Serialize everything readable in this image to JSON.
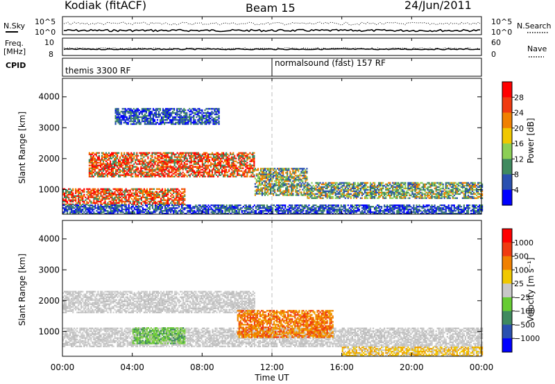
{
  "header": {
    "station": "Kodiak (fitACF)",
    "beam": "Beam 15",
    "date": "24/Jun/2011"
  },
  "panels": {
    "nsky_label": "N.Sky",
    "nsearch_label": "N.Search",
    "nsky_ticks": [
      "10^5",
      "10^0"
    ],
    "nsky_right_ticks": [
      "10^5",
      "10^0"
    ],
    "freq_label_line1": "Freq.",
    "freq_label_line2": "[MHz]",
    "freq_ticks": [
      "10",
      "8"
    ],
    "nave_label": "Nave",
    "nave_ticks": [
      "60",
      "0"
    ],
    "cpid_label": "CPID",
    "cpid_segments": [
      {
        "label": "themis 3300 RF",
        "start_hour": 0
      },
      {
        "label": "normalsound (fast) 157 RF",
        "start_hour": 12
      }
    ]
  },
  "chart_data": [
    {
      "type": "heatmap",
      "name": "power",
      "ylabel": "Slant Range [km]",
      "xlabel": "Time UT",
      "xlim_hours": [
        0,
        24
      ],
      "ylim": [
        200,
        4600
      ],
      "yticks": [
        "4000",
        "3000",
        "2000",
        "1000"
      ],
      "xticks": [
        "00:00",
        "04:00",
        "08:00",
        "12:00",
        "16:00",
        "20:00",
        "00:00"
      ],
      "colorbar_label": "Power [dB]",
      "colorbar_ticks": [
        "28",
        "24",
        "20",
        "16",
        "12",
        "8",
        "4"
      ],
      "colorbar_colors": [
        "#0000ff",
        "#2a50b0",
        "#3f8a5f",
        "#8ccf55",
        "#f0c800",
        "#f08000",
        "#f03a10",
        "#ff0000"
      ],
      "bands": [
        {
          "t0": 0.0,
          "t1": 7.0,
          "r0": 500,
          "r1": 1000,
          "level": "high"
        },
        {
          "t0": 1.5,
          "t1": 11.0,
          "r0": 1400,
          "r1": 2200,
          "level": "high"
        },
        {
          "t0": 11.0,
          "t1": 14.0,
          "r0": 800,
          "r1": 1700,
          "level": "mid"
        },
        {
          "t0": 14.0,
          "t1": 24.0,
          "r0": 700,
          "r1": 1200,
          "level": "mid"
        },
        {
          "t0": 3.0,
          "t1": 9.0,
          "r0": 3100,
          "r1": 3600,
          "level": "low"
        },
        {
          "t0": 0.0,
          "t1": 24.0,
          "r0": 200,
          "r1": 500,
          "level": "low"
        }
      ]
    },
    {
      "type": "heatmap",
      "name": "velocity",
      "ylabel": "Slant Range [km]",
      "xlabel": "Time UT",
      "xlim_hours": [
        0,
        24
      ],
      "ylim": [
        200,
        4600
      ],
      "yticks": [
        "4000",
        "3000",
        "2000",
        "1000"
      ],
      "xticks": [
        "00:00",
        "04:00",
        "08:00",
        "12:00",
        "16:00",
        "20:00",
        "00:00"
      ],
      "colorbar_label": "Velocity [m s⁻¹]",
      "colorbar_ticks": [
        "1000",
        "500",
        "100",
        "25",
        "−25",
        "−100",
        "−500",
        "−1000"
      ],
      "colorbar_colors": [
        "#0000ff",
        "#2a50b0",
        "#3f8a5f",
        "#66cc33",
        "#c8c8c8",
        "#f0c800",
        "#f08000",
        "#f03a10",
        "#ff0000"
      ],
      "bands": [
        {
          "t0": 0.0,
          "t1": 24.0,
          "r0": 500,
          "r1": 1100,
          "level": "gray"
        },
        {
          "t0": 0.0,
          "t1": 11.0,
          "r0": 1600,
          "r1": 2300,
          "level": "gray"
        },
        {
          "t0": 10.0,
          "t1": 15.5,
          "r0": 800,
          "r1": 1700,
          "level": "orange"
        },
        {
          "t0": 4.0,
          "t1": 7.0,
          "r0": 600,
          "r1": 1100,
          "level": "green"
        },
        {
          "t0": 16.0,
          "t1": 24.0,
          "r0": 200,
          "r1": 500,
          "level": "yellow"
        }
      ]
    }
  ]
}
